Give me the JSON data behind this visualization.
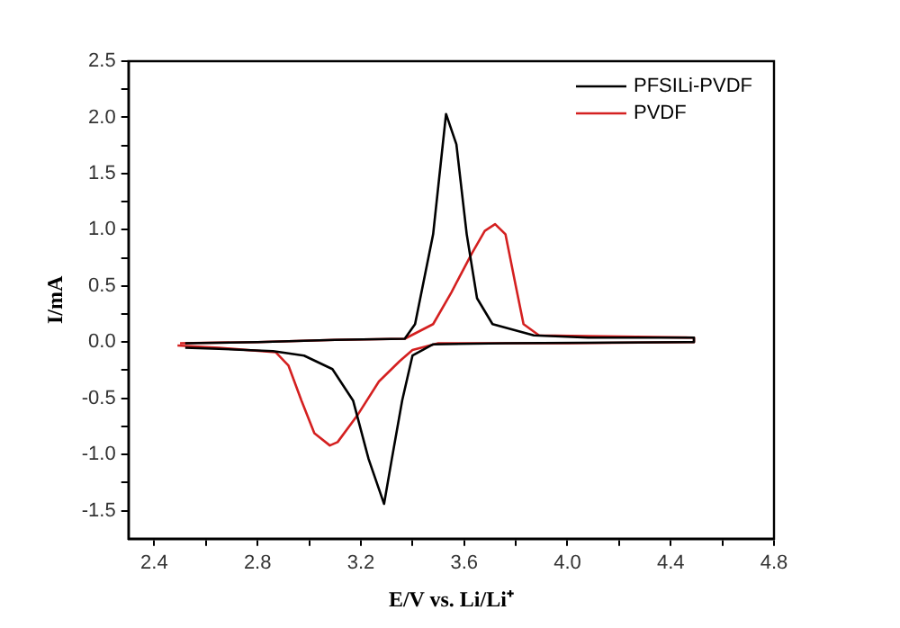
{
  "chart_data": {
    "type": "line",
    "xlabel": "E/V vs. Li/Li⁺",
    "ylabel": "I/mA",
    "xlim": [
      2.3,
      4.8
    ],
    "ylim": [
      -1.75,
      2.5
    ],
    "xticks": [
      2.4,
      {
        "value": 2.6,
        "label": null
      },
      2.8,
      {
        "value": 3.0,
        "label": null
      },
      3.2,
      {
        "value": 3.4,
        "label": null
      },
      3.6,
      {
        "value": 3.8,
        "label": null
      },
      {
        "value": 4.0,
        "label": "4.0"
      },
      {
        "value": 4.2,
        "label": null
      },
      4.4,
      {
        "value": 4.6,
        "label": null
      },
      4.8
    ],
    "yticks": [
      {
        "value": -1.5,
        "label": "-1.5"
      },
      {
        "value": -1.25,
        "label": null
      },
      {
        "value": -1.0,
        "label": "-1.0"
      },
      {
        "value": -0.75,
        "label": null
      },
      {
        "value": -0.5,
        "label": "-0.5"
      },
      {
        "value": -0.25,
        "label": null
      },
      {
        "value": 0,
        "label": "0.0"
      },
      {
        "value": 0.25,
        "label": null
      },
      {
        "value": 0.5,
        "label": "0.5"
      },
      {
        "value": 0.75,
        "label": null
      },
      {
        "value": 1.0,
        "label": "1.0"
      },
      {
        "value": 1.25,
        "label": null
      },
      {
        "value": 1.5,
        "label": "1.5"
      },
      {
        "value": 1.75,
        "label": null
      },
      {
        "value": 2.0,
        "label": "2.0"
      },
      {
        "value": 2.25,
        "label": null
      },
      {
        "value": 2.5,
        "label": "2.5"
      }
    ],
    "grid": false,
    "legend": "top right",
    "marker": "none",
    "line_style": "solid",
    "series": [
      {
        "name": "PFSILi-PVDF",
        "color": "#000000",
        "x": [
          2.52,
          2.8,
          3.1,
          3.37,
          3.41,
          3.48,
          3.53,
          3.57,
          3.61,
          3.65,
          3.71,
          3.87,
          4.08,
          4.49,
          4.49,
          3.76,
          3.48,
          3.4,
          3.36,
          3.32,
          3.29,
          3.23,
          3.17,
          3.09,
          2.98,
          2.86,
          2.65,
          2.52
        ],
        "values": [
          -0.01,
          0.0,
          0.02,
          0.03,
          0.16,
          0.96,
          2.03,
          1.76,
          0.96,
          0.39,
          0.16,
          0.06,
          0.04,
          0.04,
          0.0,
          -0.01,
          -0.02,
          -0.12,
          -0.52,
          -1.04,
          -1.44,
          -1.04,
          -0.52,
          -0.24,
          -0.12,
          -0.08,
          -0.06,
          -0.05
        ]
      },
      {
        "name": "PVDF",
        "color": "#d42020",
        "x": [
          2.5,
          2.8,
          3.1,
          3.37,
          3.48,
          3.55,
          3.63,
          3.68,
          3.72,
          3.76,
          3.8,
          3.83,
          3.89,
          4.2,
          4.49,
          4.49,
          4.0,
          3.5,
          3.4,
          3.35,
          3.27,
          3.19,
          3.11,
          3.08,
          3.02,
          2.97,
          2.92,
          2.87,
          2.65,
          2.49
        ],
        "values": [
          -0.01,
          0.0,
          0.02,
          0.03,
          0.16,
          0.44,
          0.79,
          0.99,
          1.05,
          0.96,
          0.5,
          0.16,
          0.06,
          0.05,
          0.04,
          0.0,
          -0.01,
          -0.01,
          -0.07,
          -0.17,
          -0.35,
          -0.64,
          -0.89,
          -0.92,
          -0.81,
          -0.52,
          -0.21,
          -0.09,
          -0.05,
          -0.03
        ]
      }
    ]
  }
}
